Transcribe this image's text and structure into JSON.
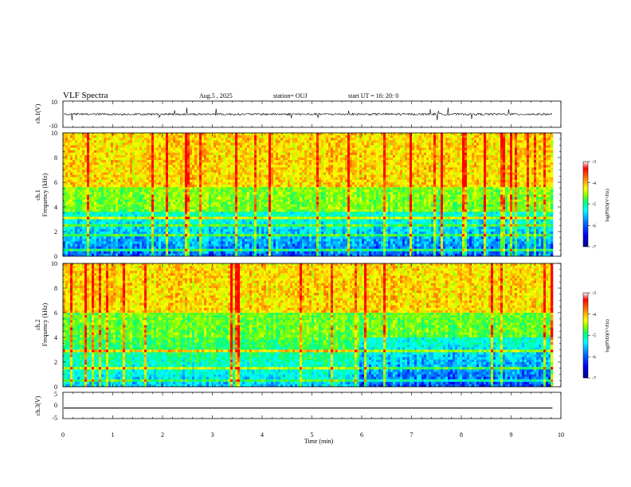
{
  "header": {
    "title": "VLF Spectra",
    "date": "Aug.5 , 2025",
    "station": "station= OUJ",
    "start": "start UT = 16: 20: 0"
  },
  "chart_data": [
    {
      "type": "line",
      "name": "ch1-waveform",
      "ylabel": "ch.1(V)",
      "ylim": [
        -10,
        10
      ],
      "ytick_labels": [
        "10",
        "-10"
      ],
      "baseline": 0,
      "spike_amplitude": 4
    },
    {
      "type": "heatmap",
      "name": "ch1-spectrogram",
      "ylabel_top": "ch.1",
      "ylabel": "Frequency (kHz)",
      "ylim": [
        0,
        10
      ],
      "yticks": [
        0,
        2,
        4,
        6,
        8,
        10
      ],
      "colorbar": {
        "label": "log(PSD)(V²/Hz)",
        "range": [
          -7,
          -3
        ],
        "ticks": [
          "-3",
          "-4",
          "-5",
          "-6",
          "-7"
        ]
      }
    },
    {
      "type": "heatmap",
      "name": "ch2-spectrogram",
      "ylabel_top": "ch.2",
      "ylabel": "Frequency (kHz)",
      "ylim": [
        0,
        10
      ],
      "yticks": [
        0,
        2,
        4,
        6,
        8,
        10
      ],
      "colorbar": {
        "label": "log(PSD)(V²/Hz)",
        "range": [
          -7,
          -3
        ],
        "ticks": [
          "-3",
          "-4",
          "-5",
          "-6",
          "-7"
        ]
      }
    },
    {
      "type": "line",
      "name": "ch3-waveform",
      "ylabel": "ch.3(V)",
      "ylim": [
        -5,
        5
      ],
      "ytick_labels": [
        "5",
        "0",
        "-5"
      ],
      "baseline": -1
    }
  ],
  "xaxis": {
    "label": "Time (min)",
    "range": [
      0,
      10
    ],
    "ticks": [
      "0",
      "1",
      "2",
      "3",
      "4",
      "5",
      "6",
      "7",
      "8",
      "9",
      "10"
    ],
    "data_end": 9.83
  },
  "colors": {
    "colormap": [
      "#000080",
      "#0000ff",
      "#0080ff",
      "#00ffff",
      "#00ff80",
      "#80ff00",
      "#ffff00",
      "#ff8000",
      "#ff0000",
      "#ffffff"
    ]
  }
}
